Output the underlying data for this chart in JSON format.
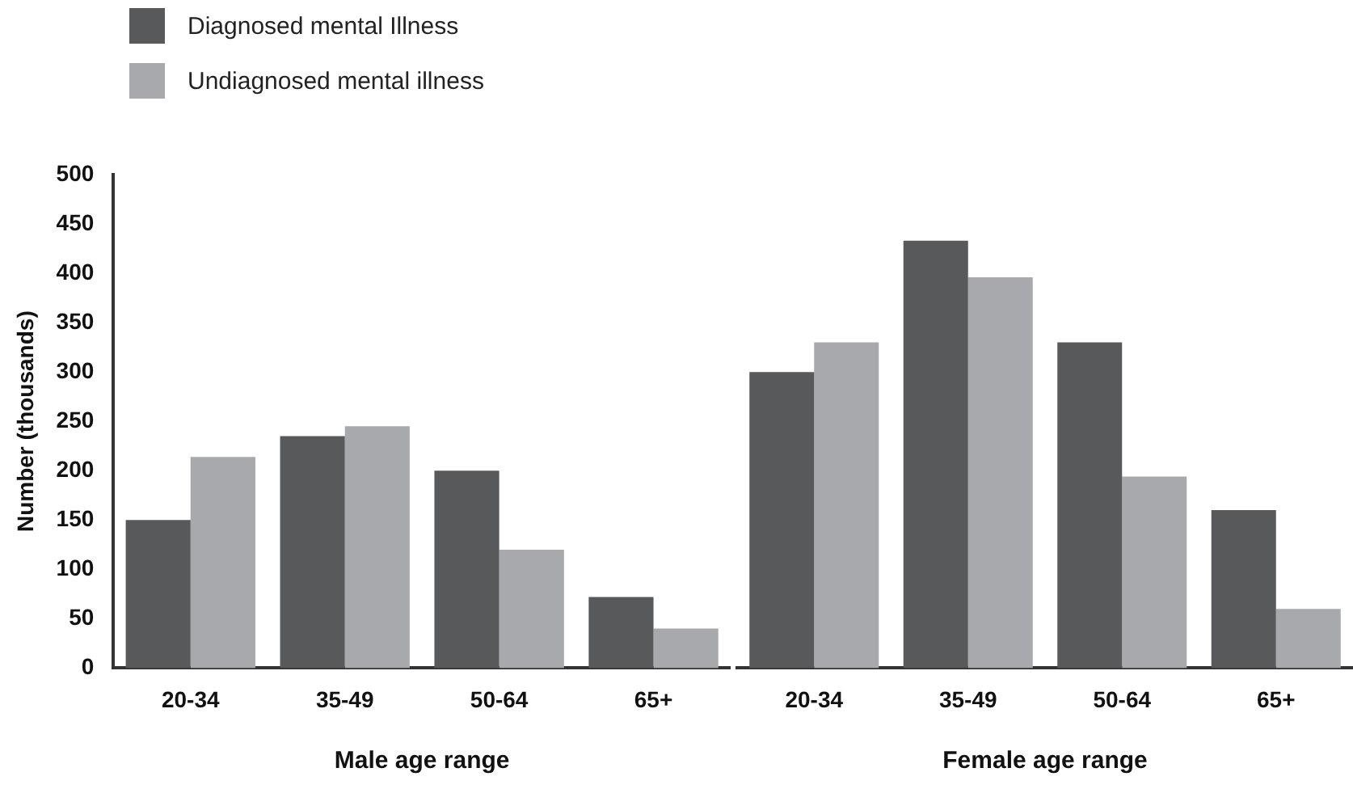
{
  "chart_data": [
    {
      "type": "bar",
      "categories": [
        "20-34",
        "35-49",
        "50-64",
        "65+"
      ],
      "xlabel": "Male age range",
      "ylabel": "Number (thousands)",
      "ylim": [
        0,
        500
      ],
      "yticks": [
        0,
        50,
        100,
        150,
        200,
        250,
        300,
        350,
        400,
        450,
        500
      ],
      "grid": false,
      "legend": "top left",
      "series": [
        {
          "name": "Diagnosed mental Illness",
          "color": "#58595b",
          "values": [
            150,
            235,
            200,
            72
          ]
        },
        {
          "name": "Undiagnosed mental illness",
          "color": "#a7a9ac",
          "values": [
            214,
            245,
            120,
            40
          ]
        }
      ]
    },
    {
      "type": "bar",
      "categories": [
        "20-34",
        "35-49",
        "50-64",
        "65+"
      ],
      "xlabel": "Female age range",
      "ylim": [
        0,
        500
      ],
      "yticks": [
        0,
        50,
        100,
        150,
        200,
        250,
        300,
        350,
        400,
        450,
        500
      ],
      "grid": false,
      "tick_labels": "x",
      "series": [
        {
          "color": "#58595b",
          "values": [
            300,
            433,
            330,
            160
          ]
        },
        {
          "color": "#a7a9ac",
          "values": [
            330,
            396,
            194,
            60
          ]
        }
      ]
    }
  ]
}
